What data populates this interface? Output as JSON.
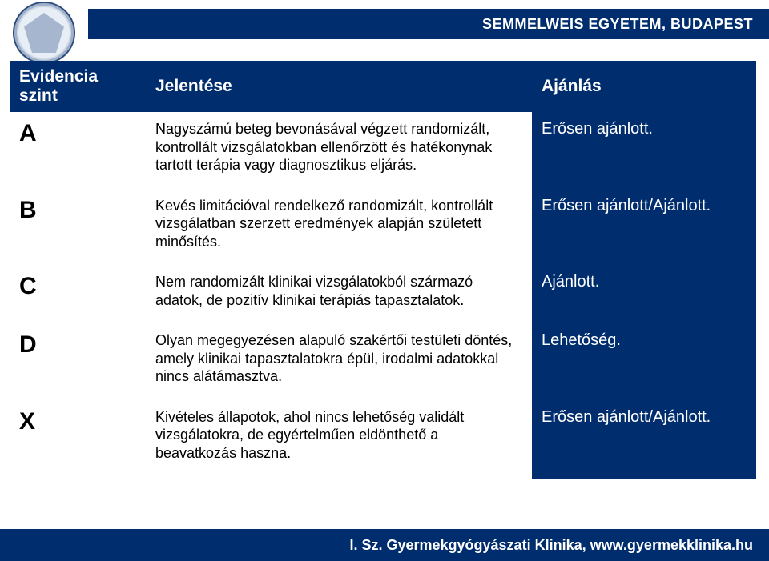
{
  "brand": {
    "top": "SEMMELWEIS EGYETEM, BUDAPEST",
    "bottom": "I. Sz. Gyermekgyógyászati Klinika, www.gyermekklinika.hu"
  },
  "headers": {
    "level": "Evidencia szint",
    "meaning": "Jelentése",
    "recommendation": "Ajánlás"
  },
  "rows": [
    {
      "level": "A",
      "meaning": "Nagyszámú beteg bevonásával végzett randomizált, kontrollált vizsgálatokban ellenőrzött és hatékonynak tartott terápia vagy diagnosztikus eljárás.",
      "recommendation": "Erősen ajánlott."
    },
    {
      "level": "B",
      "meaning": "Kevés limitációval rendelkező randomizált, kontrollált vizsgálatban szerzett eredmények alapján született minősítés.",
      "recommendation": "Erősen ajánlott/Ajánlott."
    },
    {
      "level": "C",
      "meaning": "Nem randomizált klinikai vizsgálatokból származó adatok, de pozitív klinikai terápiás tapasztalatok.",
      "recommendation": "Ajánlott."
    },
    {
      "level": "D",
      "meaning": "Olyan megegyezésen alapuló szakértői testületi döntés, amely klinikai tapasztalatokra épül, irodalmi adatokkal nincs alátámasztva.",
      "recommendation": "Lehetőség."
    },
    {
      "level": "X",
      "meaning": "Kivételes állapotok, ahol nincs lehetőség validált vizsgálatokra, de egyértelműen eldönthető a beavatkozás haszna.",
      "recommendation": "Erősen ajánlott/Ajánlott."
    }
  ],
  "colors": {
    "brand_bg": "#002d6e",
    "text": "#000000",
    "header_text": "#ffffff",
    "page_bg": "#ffffff"
  }
}
